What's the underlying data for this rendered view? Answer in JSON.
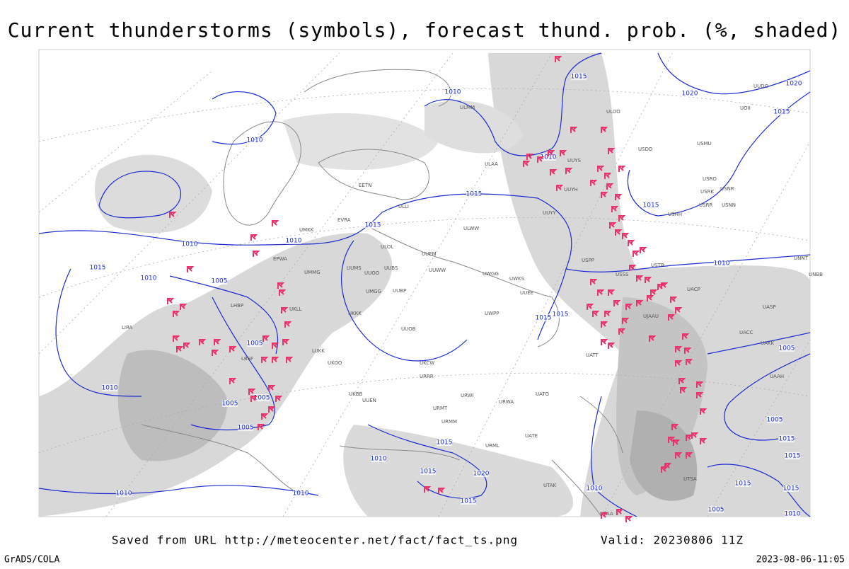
{
  "title": "Current thunderstorms (symbols), forecast thund. prob. (%, shaded)",
  "footer": {
    "source": "Saved from URL http://meteocenter.net/fact/fact_ts.png",
    "valid": "Valid: 20230806 11Z",
    "credit": "GrADS/COLA",
    "timestamp": "2023-08-06-11:05"
  },
  "isobar_labels": [
    "1010",
    "1015",
    "1020",
    "1020",
    "1015",
    "1010",
    "1010",
    "1015",
    "1015",
    "1010",
    "1010",
    "1015",
    "1015",
    "1010",
    "1005",
    "1010",
    "1015",
    "1015",
    "1005",
    "1005",
    "1010",
    "1005",
    "1005",
    "1005",
    "1005",
    "1015",
    "1010",
    "1015",
    "1015",
    "1015",
    "1020",
    "1010",
    "1010",
    "1010",
    "1015",
    "1015",
    "1015",
    "1005",
    "1010"
  ],
  "stations": [
    "ULMM",
    "ULOO",
    "UOII",
    "UUDO",
    "ULAA",
    "UUYS",
    "USDD",
    "USMU",
    "UUYH",
    "USRO",
    "USRK",
    "USNR",
    "USRR",
    "USNN",
    "USHH",
    "UUYY",
    "ULWW",
    "ULOL",
    "UUEM",
    "UUWW",
    "UUBS",
    "UUOO",
    "UUMS",
    "UUBP",
    "UMGG",
    "UWKS",
    "UWGG",
    "UKKK",
    "UUOB",
    "UWPP",
    "UUEE",
    "USPP",
    "USSS",
    "USTR",
    "UNNT",
    "UNBB",
    "UACC",
    "UASP",
    "UAKK",
    "UAAH",
    "UATT",
    "UKBB",
    "UKCW",
    "URRR",
    "URWI",
    "UATG",
    "URMT",
    "URWA",
    "URMM",
    "UATE",
    "URML",
    "UTSA",
    "UTAA",
    "UTAK",
    "LIRA",
    "UKLL",
    "LUKK",
    "UMMG",
    "EVRA",
    "EETN",
    "ULLI",
    "UMKK",
    "EPWA",
    "LHBP",
    "LBSF",
    "UKOO",
    "UUEN",
    "UACP",
    "UJAAU"
  ]
}
